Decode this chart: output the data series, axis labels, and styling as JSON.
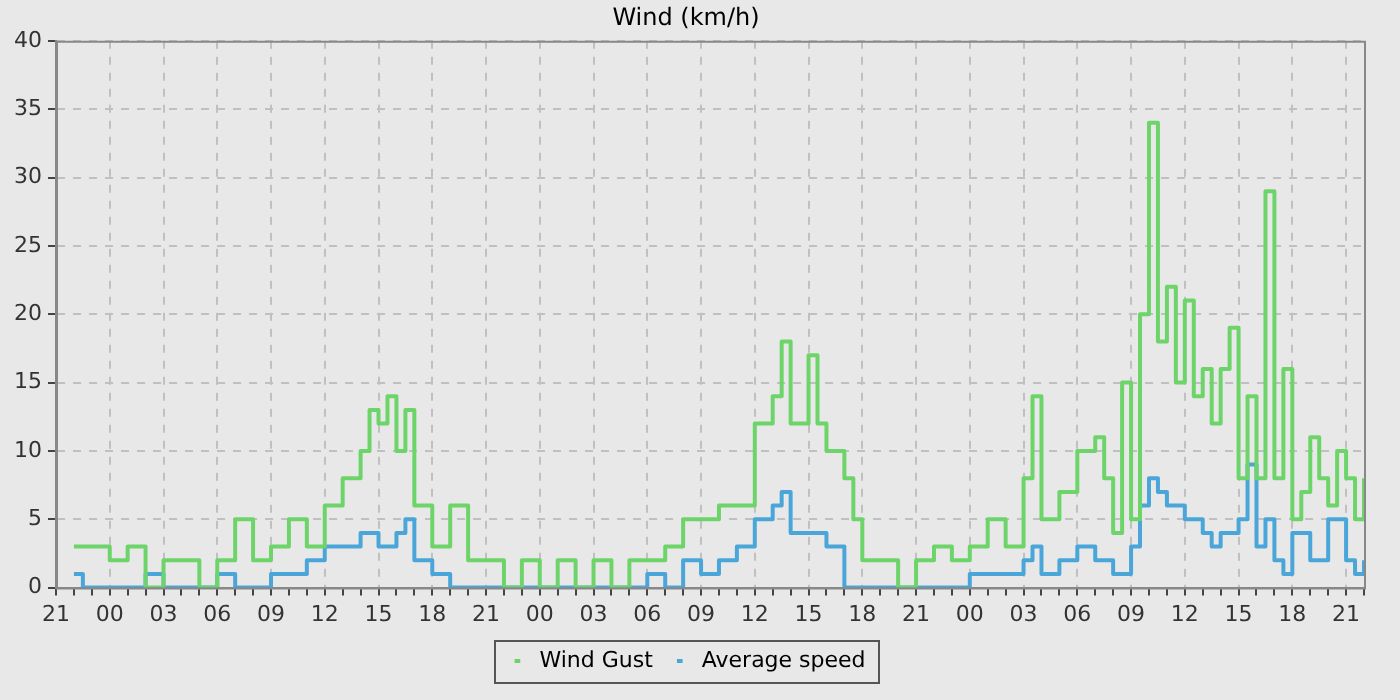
{
  "chart_data": {
    "type": "step",
    "title": "Wind (km/h)",
    "categories": [
      "21",
      null,
      null,
      null,
      null,
      null,
      "00",
      null,
      null,
      null,
      null,
      null,
      "03",
      null,
      null,
      null,
      null,
      null,
      "06",
      null,
      null,
      null,
      null,
      null,
      "09",
      null,
      null,
      null,
      null,
      null,
      "12",
      null,
      null,
      null,
      null,
      null,
      "15",
      null,
      null,
      null,
      null,
      null,
      "18",
      null,
      null,
      null,
      null,
      null,
      "21",
      null,
      null,
      null,
      null,
      null,
      "00",
      null,
      null,
      null,
      null,
      null,
      "03",
      null,
      null,
      null,
      null,
      null,
      "06",
      null,
      null,
      null,
      null,
      null,
      "09",
      null,
      null,
      null,
      null,
      null,
      "12",
      null,
      null,
      null,
      null,
      null,
      "15",
      null,
      null,
      null,
      null,
      null,
      "18",
      null,
      null,
      null,
      null,
      null,
      "21",
      null,
      null,
      null,
      null,
      null,
      "00",
      null,
      null,
      null,
      null,
      null,
      "03",
      null,
      null,
      null,
      null,
      null,
      "06",
      null,
      null,
      null,
      null,
      null,
      "09",
      null,
      null,
      null,
      null,
      null,
      "12",
      null,
      null,
      null,
      null,
      null,
      "15",
      null,
      null,
      null,
      null,
      null,
      "18",
      null,
      null,
      null,
      null,
      null,
      "21",
      null,
      null
    ],
    "ylim": [
      0,
      40
    ],
    "yticks": [
      0,
      5,
      10,
      15,
      20,
      25,
      30,
      35,
      40
    ],
    "grid": true,
    "legend": "bottom",
    "series": [
      {
        "name": "Wind Gust",
        "color": "#6dd46a",
        "values": [
          null,
          null,
          3,
          3,
          3,
          3,
          2,
          2,
          3,
          3,
          0,
          0,
          2,
          2,
          2,
          2,
          0,
          0,
          2,
          2,
          5,
          5,
          2,
          2,
          3,
          3,
          5,
          5,
          3,
          3,
          6,
          6,
          8,
          8,
          10,
          13,
          12,
          14,
          10,
          13,
          6,
          6,
          3,
          3,
          6,
          6,
          2,
          2,
          2,
          2,
          0,
          0,
          2,
          2,
          0,
          0,
          2,
          2,
          0,
          0,
          2,
          2,
          0,
          0,
          2,
          2,
          2,
          2,
          3,
          3,
          5,
          5,
          5,
          5,
          6,
          6,
          6,
          6,
          12,
          12,
          14,
          18,
          12,
          12,
          17,
          12,
          10,
          10,
          8,
          5,
          2,
          2,
          2,
          2,
          0,
          0,
          2,
          2,
          3,
          3,
          2,
          2,
          3,
          3,
          5,
          5,
          3,
          3,
          8,
          14,
          5,
          5,
          7,
          7,
          10,
          10,
          11,
          8,
          4,
          15,
          5,
          20,
          34,
          18,
          22,
          15,
          21,
          14,
          16,
          12,
          16,
          19,
          8,
          14,
          8,
          29,
          8,
          16,
          5,
          7,
          11,
          8,
          6,
          10,
          8,
          5,
          8
        ]
      },
      {
        "name": "Average speed",
        "color": "#4aa6d9",
        "values": [
          null,
          null,
          1,
          0,
          0,
          0,
          0,
          0,
          0,
          0,
          1,
          1,
          0,
          0,
          0,
          0,
          0,
          0,
          1,
          1,
          0,
          0,
          0,
          0,
          1,
          1,
          1,
          1,
          2,
          2,
          3,
          3,
          3,
          3,
          4,
          4,
          3,
          3,
          4,
          5,
          2,
          2,
          1,
          1,
          0,
          0,
          0,
          0,
          0,
          0,
          0,
          0,
          0,
          0,
          0,
          0,
          0,
          0,
          0,
          0,
          0,
          0,
          0,
          0,
          0,
          0,
          1,
          1,
          0,
          0,
          2,
          2,
          1,
          1,
          2,
          2,
          3,
          3,
          5,
          5,
          6,
          7,
          4,
          4,
          4,
          4,
          3,
          3,
          0,
          0,
          0,
          0,
          0,
          0,
          0,
          0,
          0,
          0,
          0,
          0,
          0,
          0,
          1,
          1,
          1,
          1,
          1,
          1,
          2,
          3,
          1,
          1,
          2,
          2,
          3,
          3,
          2,
          2,
          1,
          1,
          3,
          6,
          8,
          7,
          6,
          6,
          5,
          5,
          4,
          3,
          4,
          4,
          5,
          9,
          3,
          5,
          2,
          1,
          4,
          4,
          2,
          2,
          5,
          5,
          2,
          1,
          2
        ]
      }
    ]
  }
}
